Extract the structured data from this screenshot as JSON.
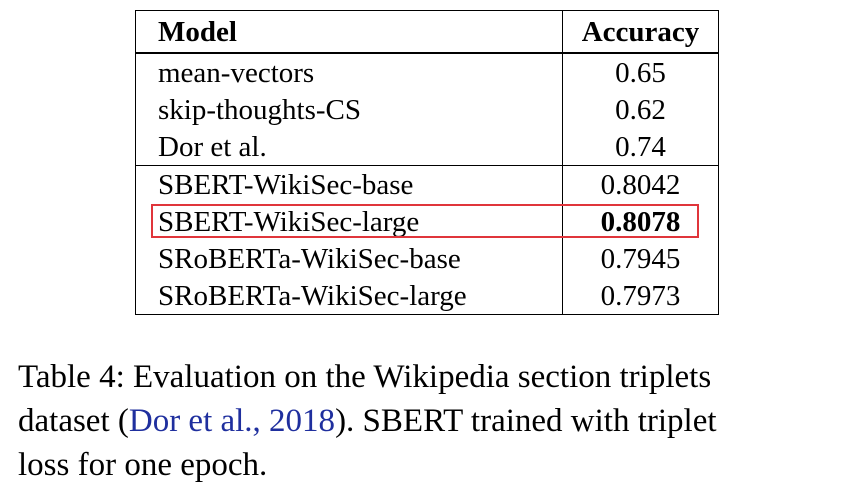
{
  "table": {
    "headers": [
      "Model",
      "Accuracy"
    ],
    "rows": [
      {
        "model": "mean-vectors",
        "accuracy": "0.65"
      },
      {
        "model": "skip-thoughts-CS",
        "accuracy": "0.62"
      },
      {
        "model": "Dor et al.",
        "accuracy": "0.74"
      },
      {
        "model": "SBERT-WikiSec-base",
        "accuracy": "0.8042"
      },
      {
        "model": "SBERT-WikiSec-large",
        "accuracy": "0.8078",
        "bold": true,
        "highlighted": true
      },
      {
        "model": "SRoBERTa-WikiSec-base",
        "accuracy": "0.7945"
      },
      {
        "model": "SRoBERTa-WikiSec-large",
        "accuracy": "0.7973"
      }
    ]
  },
  "caption": {
    "line1": "Table 4: Evaluation on the Wikipedia section triplets",
    "line2_pre": "dataset (",
    "line2_cite": "Dor et al., 2018",
    "line2_post": ").  SBERT trained with triplet",
    "line3": "loss for one epoch."
  },
  "colors": {
    "highlight_border": "#e0353b",
    "citation_link": "#1f2f9e"
  }
}
